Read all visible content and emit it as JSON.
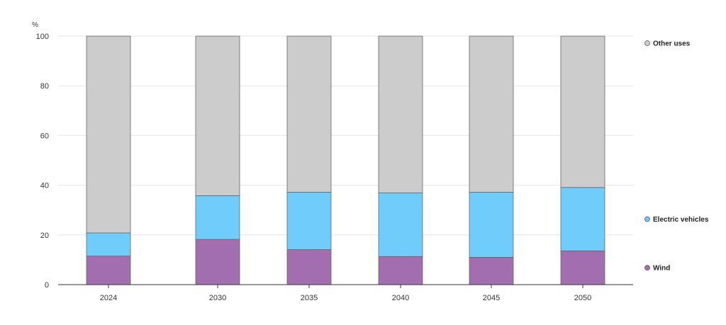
{
  "chart_data": {
    "type": "bar",
    "stacked": true,
    "unit_label": "%",
    "categories": [
      "2024",
      "2030",
      "2035",
      "2040",
      "2045",
      "2050"
    ],
    "series": [
      {
        "name": "Wind",
        "color": "#a26eb0",
        "values": [
          11.5,
          18.2,
          14.1,
          11.3,
          11.0,
          13.6
        ]
      },
      {
        "name": "Electric vehicles",
        "color": "#70cdfb",
        "values": [
          9.3,
          17.6,
          23.1,
          25.6,
          26.2,
          25.5
        ]
      },
      {
        "name": "Other uses",
        "color": "#cccccc",
        "values": [
          79.2,
          64.2,
          62.8,
          63.1,
          62.8,
          60.9
        ]
      }
    ],
    "ylim": [
      0,
      100
    ],
    "yticks": [
      0,
      20,
      40,
      60,
      80,
      100
    ],
    "grid": true,
    "legend_position": "right"
  }
}
